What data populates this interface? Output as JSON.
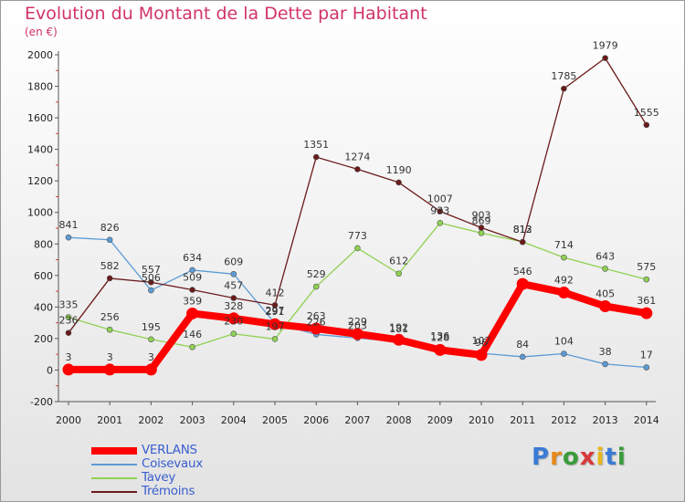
{
  "title": "Evolution du Montant de la Dette par Habitant",
  "subtitle": "(en €)",
  "logo_text": "Proxiti",
  "chart_data": {
    "type": "line",
    "title": "Evolution du Montant de la Dette par Habitant",
    "subtitle": "(en €)",
    "xlabel": "",
    "ylabel": "",
    "x": [
      "2000",
      "2001",
      "2002",
      "2003",
      "2004",
      "2005",
      "2006",
      "2007",
      "2008",
      "2009",
      "2010",
      "2011",
      "2012",
      "2013",
      "2014"
    ],
    "ylim": [
      -200,
      2000
    ],
    "yticks": [
      -200,
      0,
      200,
      400,
      600,
      800,
      1000,
      1200,
      1400,
      1600,
      1800,
      2000
    ],
    "grid": false,
    "legend_position": "bottom-left",
    "series": [
      {
        "name": "VERLANS",
        "color": "#ff0000",
        "values": [
          3,
          3,
          3,
          359,
          328,
          291,
          263,
          229,
          192,
          128,
          96,
          546,
          492,
          405,
          361
        ]
      },
      {
        "name": "Coisevaux",
        "color": "#5b9bd5",
        "values": [
          841,
          826,
          506,
          634,
          609,
          297,
          226,
          203,
          181,
          136,
          107,
          84,
          104,
          38,
          17
        ]
      },
      {
        "name": "Tavey",
        "color": "#8fd152",
        "values": [
          335,
          256,
          195,
          146,
          230,
          197,
          529,
          773,
          612,
          933,
          869,
          813,
          714,
          643,
          575
        ]
      },
      {
        "name": "Trémoins",
        "color": "#6b1a1a",
        "values": [
          236,
          582,
          557,
          509,
          457,
          412,
          1351,
          1274,
          1190,
          1007,
          903,
          812,
          1785,
          1979,
          1555
        ]
      }
    ]
  }
}
